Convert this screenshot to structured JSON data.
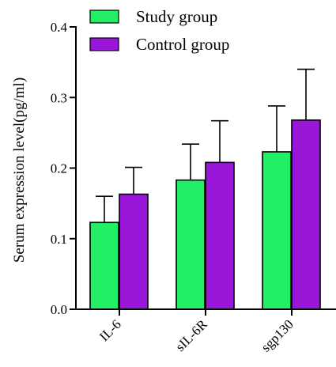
{
  "chart_data": {
    "type": "bar",
    "title": "",
    "xlabel": "",
    "ylabel": "Serum expression level(pg/ml)",
    "categories": [
      "IL-6",
      "sIL-6R",
      "sgp130"
    ],
    "ylim": [
      0.0,
      0.4
    ],
    "yticks": [
      "0.0",
      "0.1",
      "0.2",
      "0.3",
      "0.4"
    ],
    "error_bars": "upper",
    "grid": false,
    "legend_position": "top-left",
    "series": [
      {
        "name": "Study group",
        "color": "#22ee66",
        "values": [
          0.123,
          0.183,
          0.223
        ],
        "errors": [
          0.037,
          0.051,
          0.065
        ]
      },
      {
        "name": "Control group",
        "color": "#9a17d9",
        "values": [
          0.163,
          0.208,
          0.268
        ],
        "errors": [
          0.038,
          0.059,
          0.072
        ]
      }
    ]
  }
}
